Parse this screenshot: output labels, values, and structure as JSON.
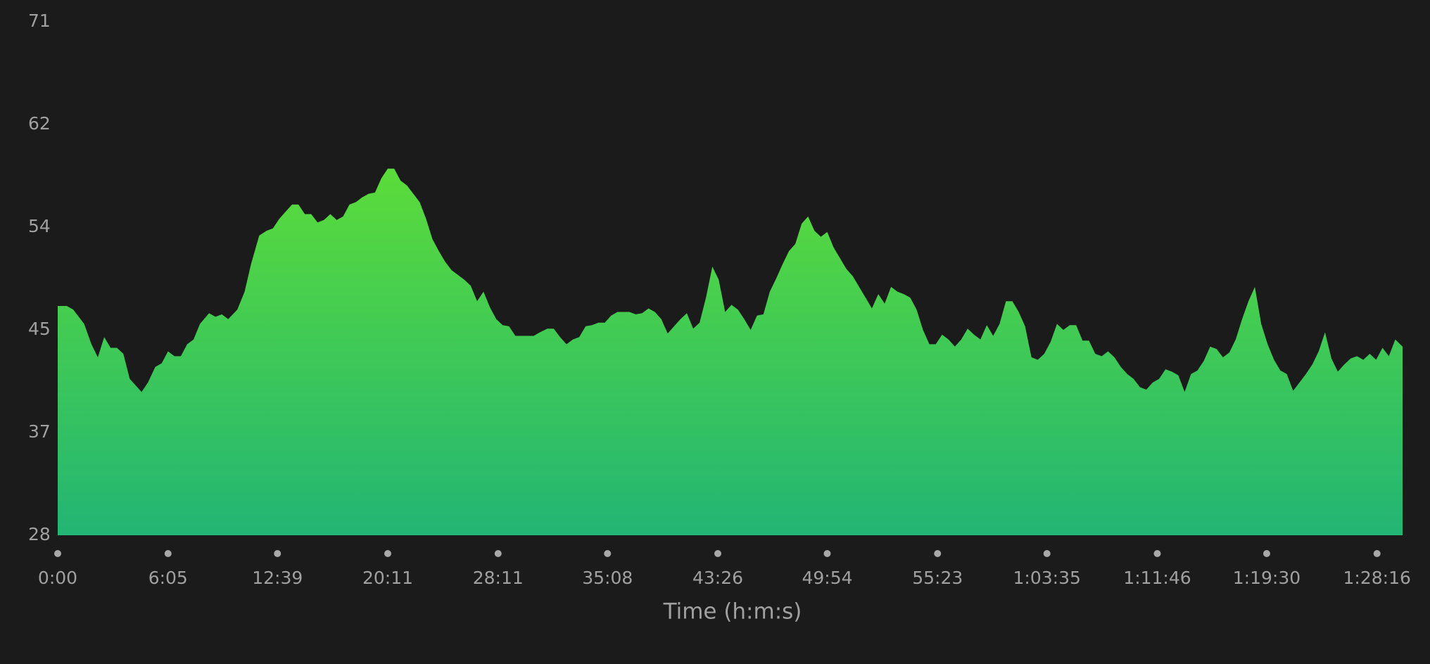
{
  "chart_data": {
    "type": "area",
    "x_label": "Time (h:m:s)",
    "color_top": "#5bdc3a",
    "color_bottom": "#22b574",
    "tick_dot_color": "#a8a8a8",
    "xlim": [
      0,
      1475
    ],
    "ylim": [
      28,
      71
    ],
    "yticks": [
      28,
      {
        "value": 36.6,
        "label": "37"
      },
      {
        "value": 45.2,
        "label": "45"
      },
      {
        "value": 53.8,
        "label": "54"
      },
      {
        "value": 62.4,
        "label": "62"
      },
      71
    ],
    "xticks": [
      {
        "value": 0,
        "label": "0:00"
      },
      {
        "value": 121,
        "label": "6:05"
      },
      {
        "value": 241,
        "label": "12:39"
      },
      {
        "value": 362,
        "label": "20:11"
      },
      {
        "value": 483,
        "label": "28:11"
      },
      {
        "value": 603,
        "label": "35:08"
      },
      {
        "value": 724,
        "label": "43:26"
      },
      {
        "value": 844,
        "label": "49:54"
      },
      {
        "value": 965,
        "label": "55:23"
      },
      {
        "value": 1085,
        "label": "1:03:35"
      },
      {
        "value": 1206,
        "label": "1:11:46"
      },
      {
        "value": 1326,
        "label": "1:19:30"
      },
      {
        "value": 1447,
        "label": "1:28:16"
      }
    ],
    "x": [
      0,
      10,
      17,
      29,
      37,
      44,
      51,
      58,
      65,
      72,
      79,
      92,
      99,
      107,
      114,
      121,
      128,
      135,
      142,
      149,
      156,
      166,
      173,
      180,
      187,
      197,
      205,
      212,
      221,
      229,
      236,
      243,
      250,
      257,
      264,
      271,
      278,
      285,
      292,
      299,
      306,
      313,
      320,
      327,
      334,
      341,
      348,
      355,
      362,
      369,
      376,
      383,
      390,
      397,
      404,
      411,
      418,
      425,
      432,
      439,
      446,
      453,
      460,
      467,
      474,
      481,
      488,
      495,
      502,
      509,
      522,
      529,
      537,
      544,
      551,
      558,
      565,
      572,
      579,
      586,
      593,
      600,
      607,
      614,
      627,
      634,
      641,
      648,
      655,
      662,
      669,
      676,
      683,
      690,
      697,
      704,
      711,
      718,
      725,
      732,
      739,
      746,
      753,
      760,
      767,
      774,
      781,
      788,
      795,
      802,
      809,
      816,
      823,
      830,
      837,
      844,
      851,
      858,
      865,
      872,
      879,
      886,
      893,
      900,
      907,
      914,
      921,
      928,
      935,
      942,
      949,
      956,
      963,
      970,
      977,
      984,
      991,
      998,
      1005,
      1012,
      1019,
      1026,
      1033,
      1040,
      1047,
      1054,
      1061,
      1068,
      1075,
      1082,
      1089,
      1096,
      1103,
      1110,
      1117,
      1124,
      1131,
      1138,
      1145,
      1152,
      1159,
      1166,
      1173,
      1180,
      1187,
      1194,
      1201,
      1208,
      1215,
      1222,
      1229,
      1236,
      1243,
      1250,
      1257,
      1264,
      1271,
      1278,
      1285,
      1292,
      1299,
      1306,
      1313,
      1320,
      1327,
      1334,
      1341,
      1348,
      1355,
      1362,
      1369,
      1376,
      1383,
      1390,
      1397,
      1404,
      1411,
      1418,
      1425,
      1432,
      1439,
      1446,
      1453,
      1460,
      1467,
      1475
    ],
    "values": [
      47.2,
      47.2,
      46.9,
      45.7,
      44.0,
      42.9,
      44.6,
      43.7,
      43.7,
      43.2,
      41.1,
      40.0,
      40.8,
      42.1,
      42.4,
      43.4,
      43.0,
      43.0,
      44.0,
      44.4,
      45.7,
      46.6,
      46.3,
      46.5,
      46.1,
      46.9,
      48.4,
      50.7,
      53.1,
      53.5,
      53.7,
      54.5,
      55.1,
      55.7,
      55.7,
      54.9,
      54.9,
      54.2,
      54.4,
      54.9,
      54.4,
      54.7,
      55.7,
      55.9,
      56.3,
      56.6,
      56.7,
      57.9,
      58.7,
      58.7,
      57.7,
      57.3,
      56.6,
      55.9,
      54.5,
      52.8,
      51.8,
      50.9,
      50.2,
      49.8,
      49.4,
      48.9,
      47.6,
      48.4,
      47.1,
      46.1,
      45.6,
      45.5,
      44.7,
      44.7,
      44.7,
      45.0,
      45.3,
      45.3,
      44.6,
      44.0,
      44.4,
      44.6,
      45.5,
      45.6,
      45.8,
      45.8,
      46.4,
      46.7,
      46.7,
      46.5,
      46.6,
      47.0,
      46.7,
      46.1,
      44.9,
      45.5,
      46.1,
      46.6,
      45.3,
      45.8,
      47.9,
      50.5,
      49.4,
      46.7,
      47.3,
      46.9,
      46.1,
      45.2,
      46.4,
      46.5,
      48.4,
      49.5,
      50.7,
      51.8,
      52.4,
      54.1,
      54.7,
      53.5,
      53.0,
      53.4,
      52.1,
      51.2,
      50.3,
      49.7,
      48.8,
      47.9,
      47.0,
      48.2,
      47.4,
      48.8,
      48.4,
      48.2,
      47.9,
      46.9,
      45.2,
      44.0,
      44.0,
      44.8,
      44.4,
      43.8,
      44.4,
      45.3,
      44.8,
      44.4,
      45.6,
      44.7,
      45.7,
      47.6,
      47.6,
      46.7,
      45.5,
      42.9,
      42.7,
      43.2,
      44.2,
      45.7,
      45.2,
      45.6,
      45.6,
      44.3,
      44.3,
      43.2,
      43.0,
      43.4,
      42.9,
      42.1,
      41.5,
      41.1,
      40.4,
      40.2,
      40.8,
      41.1,
      41.9,
      41.7,
      41.4,
      40.0,
      41.5,
      41.8,
      42.6,
      43.8,
      43.6,
      42.9,
      43.3,
      44.4,
      46.1,
      47.6,
      48.8,
      45.7,
      44.0,
      42.7,
      41.8,
      41.5,
      40.1,
      40.8,
      41.5,
      42.3,
      43.4,
      45.0,
      42.8,
      41.7,
      42.3,
      42.8,
      43.0,
      42.7,
      43.2,
      42.7,
      43.7,
      43.0,
      44.4,
      43.8
    ]
  }
}
